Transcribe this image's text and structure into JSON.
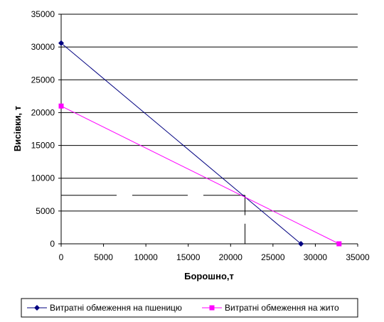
{
  "chart_data": {
    "type": "line",
    "xlabel": "Борошно,т",
    "ylabel": "Висівки, т",
    "xlim": [
      0,
      35000
    ],
    "ylim": [
      0,
      35000
    ],
    "x_ticks": [
      "0",
      "5000",
      "10000",
      "15000",
      "20000",
      "25000",
      "30000",
      "35000"
    ],
    "y_ticks": [
      "0",
      "5000",
      "10000",
      "15000",
      "20000",
      "25000",
      "30000",
      "35000"
    ],
    "grid": "horizontal",
    "legend_position": "bottom",
    "series": [
      {
        "name": "Витратні обмеження на пшеницю",
        "color": "#000080",
        "marker": "diamond",
        "points": [
          {
            "x": 0,
            "y": 30600
          },
          {
            "x": 28300,
            "y": 0
          }
        ]
      },
      {
        "name": "Витратні обмеження на жито",
        "color": "#FF00FF",
        "marker": "square",
        "points": [
          {
            "x": 0,
            "y": 21000
          },
          {
            "x": 32800,
            "y": 0
          }
        ]
      }
    ],
    "intersection": {
      "x": 21700,
      "y": 7400
    },
    "guide_color": "#000000"
  }
}
